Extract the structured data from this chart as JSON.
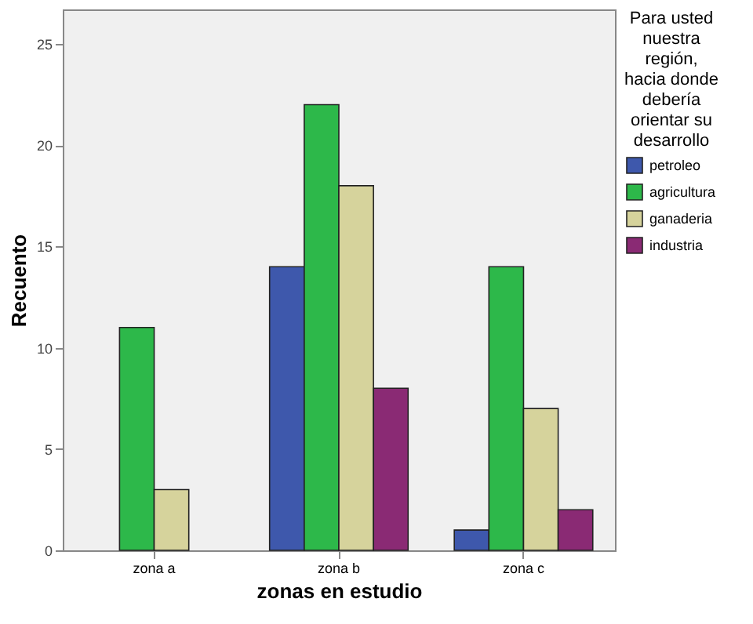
{
  "chart_data": {
    "type": "bar",
    "xlabel": "zonas en estudio",
    "ylabel": "Recuento",
    "legend_title": "Para usted nuestra región, hacia donde debería orientar su desarrollo",
    "categories": [
      "zona a",
      "zona b",
      "zona c"
    ],
    "series": [
      {
        "name": "petroleo",
        "color": "#3e58ac",
        "values": [
          null,
          14,
          1
        ]
      },
      {
        "name": "agricultura",
        "color": "#2db84a",
        "values": [
          11,
          22,
          14
        ]
      },
      {
        "name": "ganaderia",
        "color": "#d6d39c",
        "values": [
          3,
          18,
          7
        ]
      },
      {
        "name": "industria",
        "color": "#8a2a74",
        "values": [
          null,
          8,
          2
        ]
      }
    ],
    "ylim": [
      0,
      26.7
    ],
    "yticks": [
      0,
      5,
      10,
      15,
      20,
      25
    ],
    "grid": false,
    "legend": "right"
  }
}
